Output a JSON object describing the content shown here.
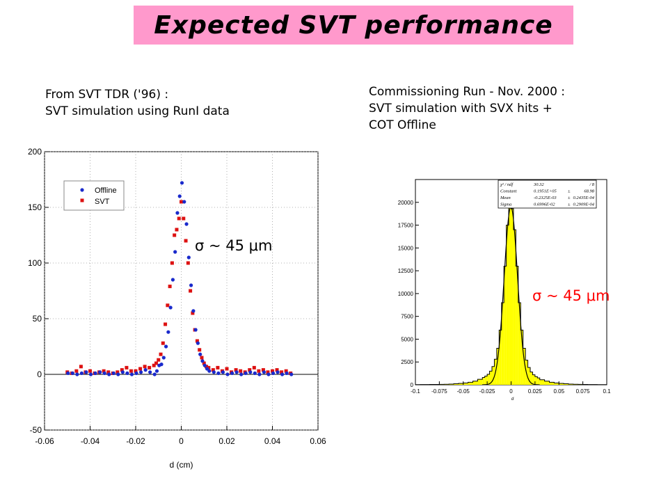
{
  "title": "Expected SVT performance",
  "left_caption": [
    "From SVT TDR ('96) :",
    "SVT simulation using RunI data"
  ],
  "right_caption": [
    "Commissioning Run - Nov. 2000 :",
    "SVT simulation with SVX hits +",
    "COT Offline"
  ],
  "sigma_left": "σ ~ 45 μm",
  "sigma_right": "σ ~ 45 μm",
  "colors": {
    "title_bg": "#ff99cc",
    "offline": "#1a2acc",
    "svt": "#dd1111",
    "histogram_fill": "#ffff00",
    "sigma_right": "#ff0000"
  },
  "chart_data": [
    {
      "type": "scatter",
      "xlabel": "d (cm)",
      "ylabel": "",
      "xlim": [
        -0.06,
        0.06
      ],
      "ylim": [
        -50,
        200
      ],
      "x_ticks": [
        -0.06,
        -0.04,
        -0.02,
        0,
        0.02,
        0.04,
        0.06
      ],
      "x_tick_labels": [
        "-0.06",
        "-0.04",
        "-0.02",
        "0",
        "0.02",
        "0.04",
        "0.06"
      ],
      "y_ticks": [
        -50,
        0,
        50,
        100,
        150,
        200
      ],
      "y_tick_labels": [
        "-50",
        "0",
        "50",
        "100",
        "150",
        "200"
      ],
      "legend_position": "top-left",
      "series": [
        {
          "name": "Offline",
          "marker": "circle",
          "x": [
            -0.05,
            -0.048,
            -0.046,
            -0.044,
            -0.042,
            -0.04,
            -0.038,
            -0.036,
            -0.034,
            -0.032,
            -0.03,
            -0.028,
            -0.026,
            -0.024,
            -0.022,
            -0.02,
            -0.018,
            -0.016,
            -0.014,
            -0.012,
            -0.011,
            -0.01,
            -0.009,
            -0.008,
            -0.007,
            -0.006,
            -0.005,
            -0.004,
            -0.003,
            -0.002,
            -0.001,
            0,
            0.001,
            0.002,
            0.003,
            0.004,
            0.005,
            0.006,
            0.007,
            0.008,
            0.009,
            0.01,
            0.011,
            0.012,
            0.014,
            0.016,
            0.018,
            0.02,
            0.022,
            0.024,
            0.026,
            0.028,
            0.03,
            0.032,
            0.034,
            0.036,
            0.038,
            0.04,
            0.042,
            0.044,
            0.046,
            0.048
          ],
          "y": [
            1,
            1,
            0,
            1,
            2,
            0,
            1,
            2,
            1,
            0,
            1,
            0,
            2,
            1,
            0,
            1,
            2,
            4,
            2,
            0,
            3,
            8,
            9,
            15,
            25,
            38,
            60,
            85,
            110,
            145,
            160,
            172,
            155,
            135,
            105,
            80,
            57,
            40,
            28,
            18,
            12,
            8,
            5,
            3,
            2,
            1,
            2,
            0,
            1,
            2,
            0,
            1,
            2,
            1,
            0,
            2,
            0,
            1,
            2,
            0,
            1,
            0
          ]
        },
        {
          "name": "SVT",
          "marker": "square",
          "x": [
            -0.05,
            -0.048,
            -0.046,
            -0.044,
            -0.042,
            -0.04,
            -0.038,
            -0.036,
            -0.034,
            -0.032,
            -0.03,
            -0.028,
            -0.026,
            -0.024,
            -0.022,
            -0.02,
            -0.018,
            -0.016,
            -0.014,
            -0.012,
            -0.011,
            -0.01,
            -0.009,
            -0.008,
            -0.007,
            -0.006,
            -0.005,
            -0.004,
            -0.003,
            -0.002,
            -0.001,
            0,
            0.001,
            0.002,
            0.003,
            0.004,
            0.005,
            0.006,
            0.007,
            0.008,
            0.009,
            0.01,
            0.011,
            0.012,
            0.014,
            0.016,
            0.018,
            0.02,
            0.022,
            0.024,
            0.026,
            0.028,
            0.03,
            0.032,
            0.034,
            0.036,
            0.038,
            0.04,
            0.042,
            0.044,
            0.046,
            0.048
          ],
          "y": [
            2,
            1,
            3,
            7,
            2,
            3,
            1,
            2,
            3,
            2,
            1,
            2,
            4,
            6,
            3,
            3,
            5,
            7,
            6,
            8,
            10,
            13,
            18,
            28,
            45,
            62,
            79,
            100,
            125,
            130,
            140,
            155,
            140,
            120,
            100,
            75,
            55,
            40,
            30,
            22,
            15,
            10,
            7,
            6,
            4,
            6,
            3,
            5,
            2,
            4,
            3,
            2,
            4,
            6,
            3,
            4,
            2,
            3,
            4,
            2,
            3,
            1
          ]
        }
      ]
    },
    {
      "type": "histogram",
      "xlabel": "d",
      "ylabel": "",
      "xlim": [
        -0.1,
        0.1
      ],
      "ylim": [
        0,
        22500
      ],
      "x_ticks": [
        -0.1,
        -0.075,
        -0.05,
        -0.025,
        0,
        0.025,
        0.05,
        0.075,
        0.1
      ],
      "x_tick_labels": [
        "-0.1",
        "-0.075",
        "-0.05",
        "-0.025",
        "0",
        "0.025",
        "0.05",
        "0.075",
        "0.1"
      ],
      "y_ticks": [
        0,
        2500,
        5000,
        7500,
        10000,
        12500,
        15000,
        17500,
        20000
      ],
      "y_tick_labels": [
        "0",
        "2500",
        "5000",
        "7500",
        "10000",
        "12500",
        "15000",
        "17500",
        "20000"
      ],
      "stats": [
        {
          "label": "χ² / ndf",
          "value": "30.32",
          "error": "/ 8"
        },
        {
          "label": "Constant",
          "value": "0.1951E+05",
          "error": "68.98"
        },
        {
          "label": "Mean",
          "value": "-0.2325E-03",
          "error": "0.2435E-04"
        },
        {
          "label": "Sigma",
          "value": "0.6996E-02",
          "error": "0.2909E-04"
        }
      ],
      "stats_plusminus": "±",
      "bins": {
        "x": [
          -0.1,
          -0.095,
          -0.09,
          -0.085,
          -0.08,
          -0.075,
          -0.07,
          -0.065,
          -0.06,
          -0.055,
          -0.05,
          -0.045,
          -0.04,
          -0.035,
          -0.03,
          -0.0275,
          -0.025,
          -0.0225,
          -0.02,
          -0.0175,
          -0.015,
          -0.0125,
          -0.01,
          -0.0075,
          -0.005,
          -0.0025,
          0,
          0.0025,
          0.005,
          0.0075,
          0.01,
          0.0125,
          0.015,
          0.0175,
          0.02,
          0.0225,
          0.025,
          0.0275,
          0.03,
          0.035,
          0.04,
          0.045,
          0.05,
          0.055,
          0.06,
          0.065,
          0.07,
          0.075,
          0.08,
          0.085,
          0.09,
          0.095
        ],
        "width": [
          0.005,
          0.005,
          0.005,
          0.005,
          0.005,
          0.005,
          0.005,
          0.005,
          0.005,
          0.005,
          0.005,
          0.005,
          0.005,
          0.005,
          0.0025,
          0.0025,
          0.0025,
          0.0025,
          0.0025,
          0.0025,
          0.0025,
          0.0025,
          0.0025,
          0.0025,
          0.0025,
          0.0025,
          0.0025,
          0.0025,
          0.0025,
          0.0025,
          0.0025,
          0.0025,
          0.0025,
          0.0025,
          0.0025,
          0.0025,
          0.0025,
          0.0025,
          0.005,
          0.005,
          0.005,
          0.005,
          0.005,
          0.005,
          0.005,
          0.005,
          0.005,
          0.005,
          0.005,
          0.005,
          0.005,
          0.005
        ],
        "counts": [
          20,
          25,
          30,
          35,
          40,
          50,
          60,
          80,
          110,
          150,
          200,
          280,
          400,
          600,
          800,
          950,
          1150,
          1500,
          2000,
          2800,
          4000,
          6000,
          9000,
          13000,
          17500,
          19500,
          19300,
          17000,
          13000,
          9000,
          6000,
          4000,
          2700,
          1900,
          1400,
          1100,
          900,
          750,
          550,
          400,
          280,
          200,
          150,
          110,
          80,
          60,
          50,
          40,
          30,
          25,
          20,
          15
        ]
      }
    }
  ]
}
